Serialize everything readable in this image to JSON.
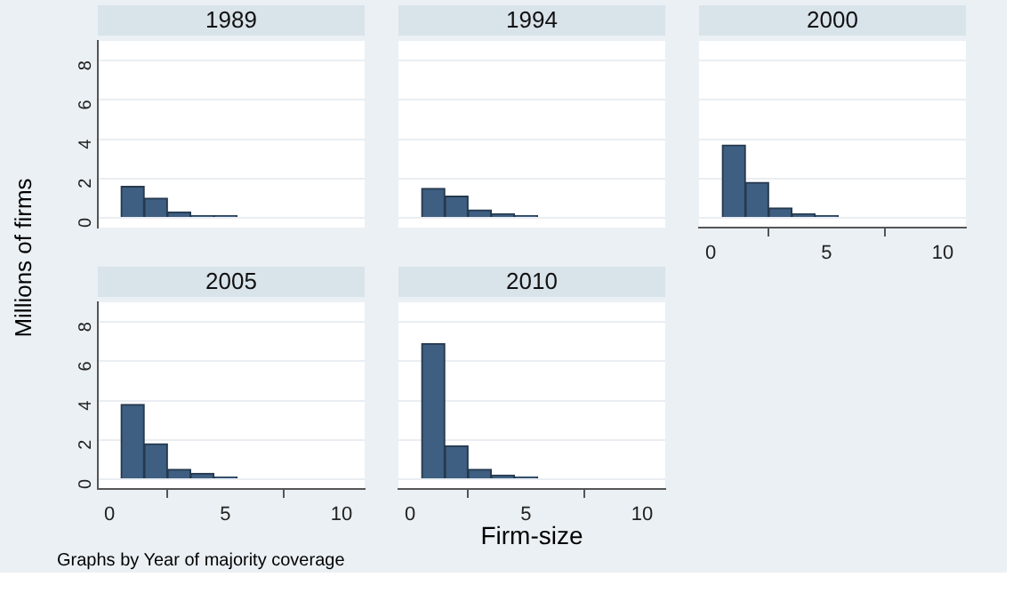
{
  "chart_data": [
    {
      "type": "histogram",
      "title": "1989",
      "ylabel": "Millions of firms",
      "bins": [
        0.5,
        1.5,
        2.5,
        3.5,
        4.5,
        5.5,
        6.5,
        7.5,
        8.5,
        9.5,
        10.5
      ],
      "values": [
        1.6,
        1.0,
        0.3,
        0.1,
        0.1,
        0,
        0,
        0,
        0,
        0
      ],
      "color": "#3e5f82",
      "xlim": [
        -0.5,
        11
      ],
      "xticks": [
        0,
        5,
        10
      ],
      "ylim": [
        -0.5,
        9
      ],
      "yticks": [
        0,
        2,
        4,
        6,
        8
      ],
      "grid": "y",
      "tick_labels": "y"
    },
    {
      "type": "histogram",
      "title": "1994",
      "bins": [
        0.5,
        1.5,
        2.5,
        3.5,
        4.5,
        5.5,
        6.5,
        7.5,
        8.5,
        9.5,
        10.5
      ],
      "values": [
        1.5,
        1.1,
        0.4,
        0.2,
        0.1,
        0,
        0,
        0,
        0,
        0
      ],
      "color": "#3e5f82",
      "xlim": [
        -0.5,
        11
      ],
      "xticks": [
        0,
        5,
        10
      ],
      "ylim": [
        -0.5,
        9
      ],
      "yticks": [
        0,
        2,
        4,
        6,
        8
      ],
      "grid": "y",
      "tick_labels": false
    },
    {
      "type": "histogram",
      "title": "2000",
      "bins": [
        0.5,
        1.5,
        2.5,
        3.5,
        4.5,
        5.5,
        6.5,
        7.5,
        8.5,
        9.5,
        10.5
      ],
      "values": [
        3.7,
        1.8,
        0.5,
        0.2,
        0.1,
        0,
        0,
        0,
        0,
        0
      ],
      "color": "#3e5f82",
      "xlim": [
        -0.5,
        11
      ],
      "xticks": [
        0,
        5,
        10
      ],
      "ylim": [
        -0.5,
        9
      ],
      "yticks": [
        0,
        2,
        4,
        6,
        8
      ],
      "grid": "y",
      "tick_labels": "x"
    },
    {
      "type": "histogram",
      "title": "2005",
      "annotations": [
        "Graphs by Year of majority coverage"
      ],
      "bins": [
        0.5,
        1.5,
        2.5,
        3.5,
        4.5,
        5.5,
        6.5,
        7.5,
        8.5,
        9.5,
        10.5
      ],
      "values": [
        3.8,
        1.8,
        0.5,
        0.3,
        0.1,
        0,
        0,
        0,
        0,
        0
      ],
      "color": "#3e5f82",
      "xlim": [
        -0.5,
        11
      ],
      "xticks": [
        0,
        5,
        10
      ],
      "ylim": [
        -0.5,
        9
      ],
      "yticks": [
        0,
        2,
        4,
        6,
        8
      ],
      "grid": "y"
    },
    {
      "type": "histogram",
      "title": "2010",
      "xlabel": "Firm-size",
      "bins": [
        0.5,
        1.5,
        2.5,
        3.5,
        4.5,
        5.5,
        6.5,
        7.5,
        8.5,
        9.5,
        10.5
      ],
      "values": [
        6.9,
        1.7,
        0.5,
        0.2,
        0.1,
        0,
        0,
        0,
        0,
        0
      ],
      "color": "#3e5f82",
      "xlim": [
        -0.5,
        11
      ],
      "xticks": [
        0,
        5,
        10
      ],
      "ylim": [
        -0.5,
        9
      ],
      "yticks": [
        0,
        2,
        4,
        6,
        8
      ],
      "grid": "y",
      "tick_labels": "x"
    }
  ]
}
